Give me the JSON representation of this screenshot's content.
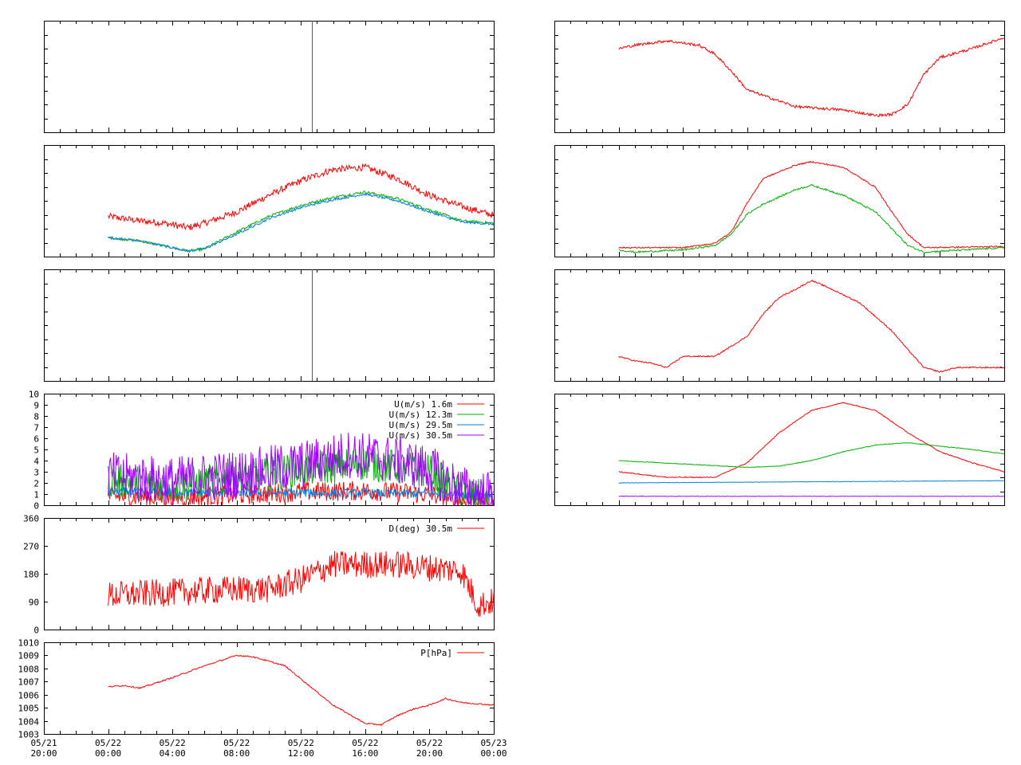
{
  "colors": {
    "red": "#ff0000",
    "green": "#00b000",
    "blue": "#0080e0",
    "purple": "#a000ff",
    "teal": "#008080",
    "frame": "#000000"
  },
  "x_axis": {
    "range_hours": [
      -4,
      24
    ],
    "tick_step_hours": 1,
    "ticks": [
      {
        "h": -4,
        "date": "05/21",
        "time": "20:00"
      },
      {
        "h": 0,
        "date": "05/22",
        "time": "00:00"
      },
      {
        "h": 4,
        "date": "05/22",
        "time": "04:00"
      },
      {
        "h": 8,
        "date": "05/22",
        "time": "08:00"
      },
      {
        "h": 12,
        "date": "05/22",
        "time": "12:00"
      },
      {
        "h": 16,
        "date": "05/22",
        "time": "16:00"
      },
      {
        "h": 20,
        "date": "05/22",
        "time": "20:00"
      },
      {
        "h": 24,
        "date": "05/23",
        "time": "00:00"
      }
    ]
  },
  "chart_data": [
    {
      "id": "L1",
      "type": "line",
      "ylim": [
        0,
        1
      ],
      "yticks": [],
      "vline_h": 12.7,
      "series": [],
      "legend": []
    },
    {
      "id": "L2",
      "type": "line",
      "ylim": [
        0,
        1
      ],
      "yticks": [],
      "series": [
        {
          "color": "red",
          "noise": 0.03,
          "pts": [
            [
              0,
              0.36
            ],
            [
              2,
              0.32
            ],
            [
              3.5,
              0.3
            ],
            [
              5,
              0.26
            ],
            [
              6,
              0.3
            ],
            [
              8,
              0.4
            ],
            [
              10,
              0.55
            ],
            [
              12,
              0.68
            ],
            [
              14,
              0.78
            ],
            [
              16,
              0.8
            ],
            [
              18,
              0.7
            ],
            [
              20,
              0.55
            ],
            [
              22,
              0.45
            ],
            [
              24,
              0.37
            ]
          ]
        },
        {
          "color": "green",
          "noise": 0.012,
          "pts": [
            [
              0,
              0.17
            ],
            [
              2,
              0.14
            ],
            [
              4,
              0.08
            ],
            [
              5,
              0.05
            ],
            [
              6,
              0.07
            ],
            [
              8,
              0.22
            ],
            [
              10,
              0.36
            ],
            [
              12,
              0.46
            ],
            [
              14,
              0.53
            ],
            [
              16,
              0.58
            ],
            [
              18,
              0.52
            ],
            [
              20,
              0.42
            ],
            [
              22,
              0.32
            ],
            [
              24,
              0.3
            ]
          ]
        },
        {
          "color": "blue",
          "noise": 0.01,
          "pts": [
            [
              0,
              0.17
            ],
            [
              2,
              0.14
            ],
            [
              4,
              0.08
            ],
            [
              5,
              0.05
            ],
            [
              6,
              0.07
            ],
            [
              8,
              0.2
            ],
            [
              10,
              0.34
            ],
            [
              12,
              0.44
            ],
            [
              14,
              0.51
            ],
            [
              16,
              0.56
            ],
            [
              18,
              0.5
            ],
            [
              20,
              0.4
            ],
            [
              22,
              0.31
            ],
            [
              24,
              0.29
            ]
          ]
        }
      ],
      "legend": []
    },
    {
      "id": "L3",
      "type": "line",
      "ylim": [
        0,
        1
      ],
      "yticks": [],
      "vline_h": 12.7,
      "series": [],
      "legend": []
    },
    {
      "id": "L4",
      "type": "line",
      "ylim": [
        0,
        10
      ],
      "yticks": [
        0,
        1,
        2,
        3,
        4,
        5,
        6,
        7,
        8,
        9,
        10
      ],
      "series": [
        {
          "name": "U(m/s)  1.6m",
          "color": "red",
          "noise": 0.9,
          "pts": [
            [
              0,
              0.8
            ],
            [
              4,
              0.7
            ],
            [
              8,
              0.9
            ],
            [
              12,
              1.2
            ],
            [
              16,
              1.3
            ],
            [
              20,
              1.0
            ],
            [
              22,
              0.4
            ],
            [
              24,
              0.2
            ]
          ]
        },
        {
          "name": "U(m/s) 12.3m",
          "color": "green",
          "noise": 1.6,
          "pts": [
            [
              0,
              2.2
            ],
            [
              4,
              1.8
            ],
            [
              8,
              2.4
            ],
            [
              12,
              3.2
            ],
            [
              16,
              3.8
            ],
            [
              20,
              3.0
            ],
            [
              22,
              1.0
            ],
            [
              24,
              0.6
            ]
          ]
        },
        {
          "name": "U(m/s) 29.5m",
          "color": "blue",
          "noise": 0.4,
          "pts": [
            [
              0,
              1.2
            ],
            [
              24,
              1.0
            ]
          ]
        },
        {
          "name": "U(m/s) 30.5m",
          "color": "purple",
          "noise": 2.2,
          "pts": [
            [
              0,
              2.6
            ],
            [
              4,
              2.2
            ],
            [
              8,
              2.8
            ],
            [
              12,
              3.6
            ],
            [
              15,
              4.6
            ],
            [
              18,
              4.0
            ],
            [
              20,
              3.2
            ],
            [
              22,
              1.4
            ],
            [
              24,
              0.8
            ]
          ]
        }
      ],
      "legend": [
        "U(m/s)  1.6m",
        "U(m/s) 12.3m",
        "U(m/s) 29.5m",
        "U(m/s) 30.5m"
      ]
    },
    {
      "id": "L5",
      "type": "line",
      "ylim": [
        0,
        360
      ],
      "yticks": [
        0,
        90,
        180,
        270,
        360
      ],
      "series": [
        {
          "name": "D(deg)  30.5m",
          "color": "red",
          "noise": 45,
          "pts": [
            [
              0,
              110
            ],
            [
              4,
              120
            ],
            [
              8,
              130
            ],
            [
              10,
              130
            ],
            [
              12,
              160
            ],
            [
              14,
              210
            ],
            [
              18,
              210
            ],
            [
              22,
              190
            ],
            [
              23,
              80
            ],
            [
              24,
              90
            ]
          ]
        }
      ],
      "legend": [
        "D(deg)  30.5m"
      ]
    },
    {
      "id": "L6",
      "type": "line",
      "ylim": [
        1003,
        1010
      ],
      "yticks": [
        1003,
        1004,
        1005,
        1006,
        1007,
        1008,
        1009,
        1010
      ],
      "series": [
        {
          "name": "P[hPa]",
          "color": "red",
          "noise": 0.05,
          "pts": [
            [
              0,
              1006.6
            ],
            [
              1,
              1006.7
            ],
            [
              2,
              1006.5
            ],
            [
              4,
              1007.3
            ],
            [
              6,
              1008.2
            ],
            [
              8,
              1009.0
            ],
            [
              9,
              1008.9
            ],
            [
              11,
              1008.2
            ],
            [
              12,
              1007.2
            ],
            [
              14,
              1005.2
            ],
            [
              16,
              1003.8
            ],
            [
              17,
              1003.7
            ],
            [
              18,
              1004.4
            ],
            [
              19,
              1004.9
            ],
            [
              20,
              1005.2
            ],
            [
              21,
              1005.7
            ],
            [
              22,
              1005.4
            ],
            [
              24,
              1005.2
            ]
          ]
        }
      ],
      "legend": [
        "P[hPa]"
      ]
    },
    {
      "id": "R1",
      "type": "line",
      "ylim": [
        0,
        1
      ],
      "yticks": [],
      "series": [
        {
          "color": "red",
          "noise": 0.012,
          "pts": [
            [
              0,
              0.75
            ],
            [
              1,
              0.78
            ],
            [
              3,
              0.82
            ],
            [
              5,
              0.78
            ],
            [
              6,
              0.7
            ],
            [
              7,
              0.55
            ],
            [
              8,
              0.38
            ],
            [
              9,
              0.33
            ],
            [
              11,
              0.23
            ],
            [
              14,
              0.2
            ],
            [
              16,
              0.15
            ],
            [
              17,
              0.16
            ],
            [
              18,
              0.25
            ],
            [
              19,
              0.52
            ],
            [
              20,
              0.67
            ],
            [
              22,
              0.75
            ],
            [
              24,
              0.85
            ]
          ]
        }
      ],
      "legend": []
    },
    {
      "id": "R2",
      "type": "line",
      "ylim": [
        0,
        1
      ],
      "yticks": [],
      "series": [
        {
          "color": "red",
          "noise": 0.006,
          "pts": [
            [
              0,
              0.08
            ],
            [
              4,
              0.08
            ],
            [
              6,
              0.12
            ],
            [
              7,
              0.22
            ],
            [
              8,
              0.48
            ],
            [
              9,
              0.7
            ],
            [
              11,
              0.82
            ],
            [
              12,
              0.85
            ],
            [
              14,
              0.8
            ],
            [
              16,
              0.62
            ],
            [
              17,
              0.4
            ],
            [
              18,
              0.2
            ],
            [
              19,
              0.08
            ],
            [
              24,
              0.09
            ]
          ]
        },
        {
          "color": "green",
          "noise": 0.008,
          "pts": [
            [
              0,
              0.06
            ],
            [
              1,
              0.04
            ],
            [
              4,
              0.06
            ],
            [
              6,
              0.1
            ],
            [
              7,
              0.2
            ],
            [
              8,
              0.38
            ],
            [
              9,
              0.47
            ],
            [
              11,
              0.6
            ],
            [
              12,
              0.64
            ],
            [
              14,
              0.55
            ],
            [
              16,
              0.4
            ],
            [
              17,
              0.25
            ],
            [
              18,
              0.1
            ],
            [
              19,
              0.04
            ],
            [
              24,
              0.08
            ]
          ]
        }
      ],
      "legend": []
    },
    {
      "id": "R3",
      "type": "line",
      "ylim": [
        0,
        1
      ],
      "yticks": [],
      "series": [
        {
          "color": "red",
          "noise": 0.006,
          "pts": [
            [
              0,
              0.22
            ],
            [
              1,
              0.18
            ],
            [
              2,
              0.16
            ],
            [
              3,
              0.12
            ],
            [
              4,
              0.22
            ],
            [
              6,
              0.22
            ],
            [
              8,
              0.4
            ],
            [
              9,
              0.6
            ],
            [
              10,
              0.75
            ],
            [
              11,
              0.82
            ],
            [
              12,
              0.9
            ],
            [
              13,
              0.84
            ],
            [
              15,
              0.7
            ],
            [
              17,
              0.45
            ],
            [
              18,
              0.28
            ],
            [
              19,
              0.12
            ],
            [
              20,
              0.08
            ],
            [
              21,
              0.12
            ],
            [
              24,
              0.12
            ]
          ]
        }
      ],
      "legend": []
    },
    {
      "id": "R4",
      "type": "line",
      "ylim": [
        0,
        1
      ],
      "yticks": [],
      "series": [
        {
          "color": "red",
          "noise": 0.004,
          "pts": [
            [
              0,
              0.3
            ],
            [
              3,
              0.25
            ],
            [
              6,
              0.25
            ],
            [
              8,
              0.38
            ],
            [
              10,
              0.65
            ],
            [
              12,
              0.85
            ],
            [
              14,
              0.92
            ],
            [
              16,
              0.85
            ],
            [
              18,
              0.65
            ],
            [
              20,
              0.48
            ],
            [
              22,
              0.38
            ],
            [
              24,
              0.3
            ]
          ]
        },
        {
          "color": "green",
          "noise": 0.003,
          "pts": [
            [
              0,
              0.4
            ],
            [
              4,
              0.37
            ],
            [
              8,
              0.34
            ],
            [
              10,
              0.35
            ],
            [
              12,
              0.4
            ],
            [
              14,
              0.48
            ],
            [
              16,
              0.54
            ],
            [
              18,
              0.56
            ],
            [
              20,
              0.53
            ],
            [
              22,
              0.5
            ],
            [
              24,
              0.46
            ]
          ]
        },
        {
          "color": "blue",
          "noise": 0.002,
          "pts": [
            [
              0,
              0.2
            ],
            [
              12,
              0.21
            ],
            [
              24,
              0.22
            ]
          ]
        },
        {
          "color": "purple",
          "noise": 0.002,
          "pts": [
            [
              0,
              0.08
            ],
            [
              12,
              0.08
            ],
            [
              24,
              0.08
            ]
          ]
        }
      ],
      "legend": []
    }
  ]
}
